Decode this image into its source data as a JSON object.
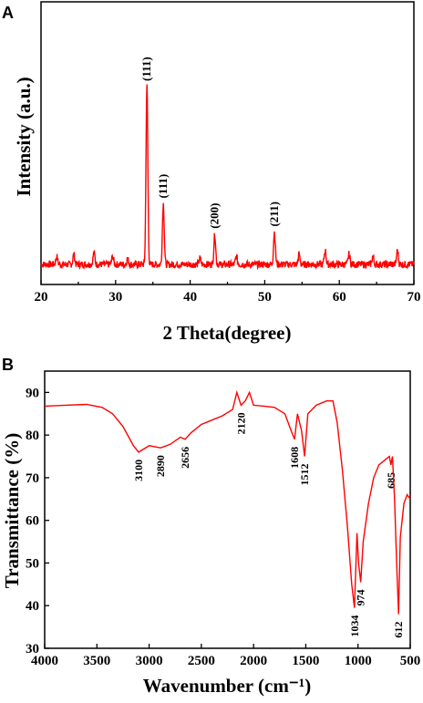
{
  "chart_data": [
    {
      "panel": "A",
      "type": "line",
      "xlabel": "2 Theta(degree)",
      "ylabel": "Intensity (a.u.)",
      "xlim": [
        20,
        70
      ],
      "ylim": [
        0,
        1
      ],
      "xticks": [
        "20",
        "30",
        "40",
        "50",
        "60",
        "70"
      ],
      "yticks": [],
      "line_color": "#ff0000",
      "baseline": 0.12,
      "peaks": [
        {
          "x": 34.2,
          "y": 1.0,
          "label": "(111)"
        },
        {
          "x": 36.4,
          "y": 0.42,
          "label": "(111)"
        },
        {
          "x": 43.3,
          "y": 0.27,
          "label": "(200)"
        },
        {
          "x": 51.3,
          "y": 0.28,
          "label": "(211)"
        },
        {
          "x": 22.1,
          "y": 0.16
        },
        {
          "x": 24.4,
          "y": 0.17
        },
        {
          "x": 27.1,
          "y": 0.18
        },
        {
          "x": 29.6,
          "y": 0.16
        },
        {
          "x": 31.6,
          "y": 0.15
        },
        {
          "x": 41.3,
          "y": 0.15
        },
        {
          "x": 46.2,
          "y": 0.16
        },
        {
          "x": 54.6,
          "y": 0.17
        },
        {
          "x": 58.1,
          "y": 0.19
        },
        {
          "x": 61.3,
          "y": 0.17
        },
        {
          "x": 64.5,
          "y": 0.16
        },
        {
          "x": 67.8,
          "y": 0.19
        }
      ]
    },
    {
      "panel": "B",
      "type": "line",
      "xlabel": "Wavenumber (cm⁻¹)",
      "ylabel": "Transmittance (%)",
      "xlim": [
        4000,
        500
      ],
      "ylim": [
        30,
        95
      ],
      "xticks": [
        "4000",
        "3500",
        "3000",
        "2500",
        "2000",
        "1500",
        "1000",
        "500"
      ],
      "yticks": [
        "30",
        "40",
        "50",
        "60",
        "70",
        "80",
        "90"
      ],
      "line_color": "#ff0000",
      "x": [
        4000,
        3800,
        3600,
        3450,
        3350,
        3250,
        3150,
        3100,
        3000,
        2890,
        2800,
        2700,
        2656,
        2600,
        2500,
        2400,
        2300,
        2200,
        2160,
        2120,
        2080,
        2040,
        2000,
        1900,
        1800,
        1700,
        1640,
        1608,
        1580,
        1540,
        1512,
        1480,
        1400,
        1300,
        1240,
        1200,
        1150,
        1100,
        1060,
        1034,
        1010,
        995,
        974,
        950,
        900,
        850,
        800,
        750,
        700,
        685,
        670,
        650,
        630,
        612,
        595,
        560,
        530,
        500
      ],
      "y": [
        86.8,
        87.0,
        87.2,
        86.5,
        85.0,
        82.0,
        77.5,
        76.0,
        77.5,
        77.0,
        77.8,
        79.5,
        79.0,
        80.5,
        82.5,
        83.5,
        84.5,
        86.0,
        90.0,
        87.0,
        88.0,
        90.0,
        87.0,
        86.8,
        86.5,
        85.0,
        81.0,
        79.0,
        85.0,
        81.0,
        75.0,
        85.0,
        87.0,
        88.0,
        88.0,
        83.0,
        72.0,
        58.0,
        45.0,
        39.5,
        57.0,
        50.0,
        45.5,
        55.0,
        64.0,
        70.0,
        73.0,
        74.0,
        75.0,
        73.0,
        75.0,
        65.0,
        50.0,
        38.0,
        56.0,
        64.0,
        66.0,
        65.0
      ],
      "annotations": [
        {
          "x": 3100,
          "label": "3100"
        },
        {
          "x": 2890,
          "label": "2890"
        },
        {
          "x": 2656,
          "label": "2656"
        },
        {
          "x": 2120,
          "label": "2120"
        },
        {
          "x": 1608,
          "label": "1608"
        },
        {
          "x": 1512,
          "label": "1512"
        },
        {
          "x": 1034,
          "label": "1034"
        },
        {
          "x": 974,
          "label": "974"
        },
        {
          "x": 685,
          "label": "685"
        },
        {
          "x": 612,
          "label": "612"
        }
      ]
    }
  ]
}
